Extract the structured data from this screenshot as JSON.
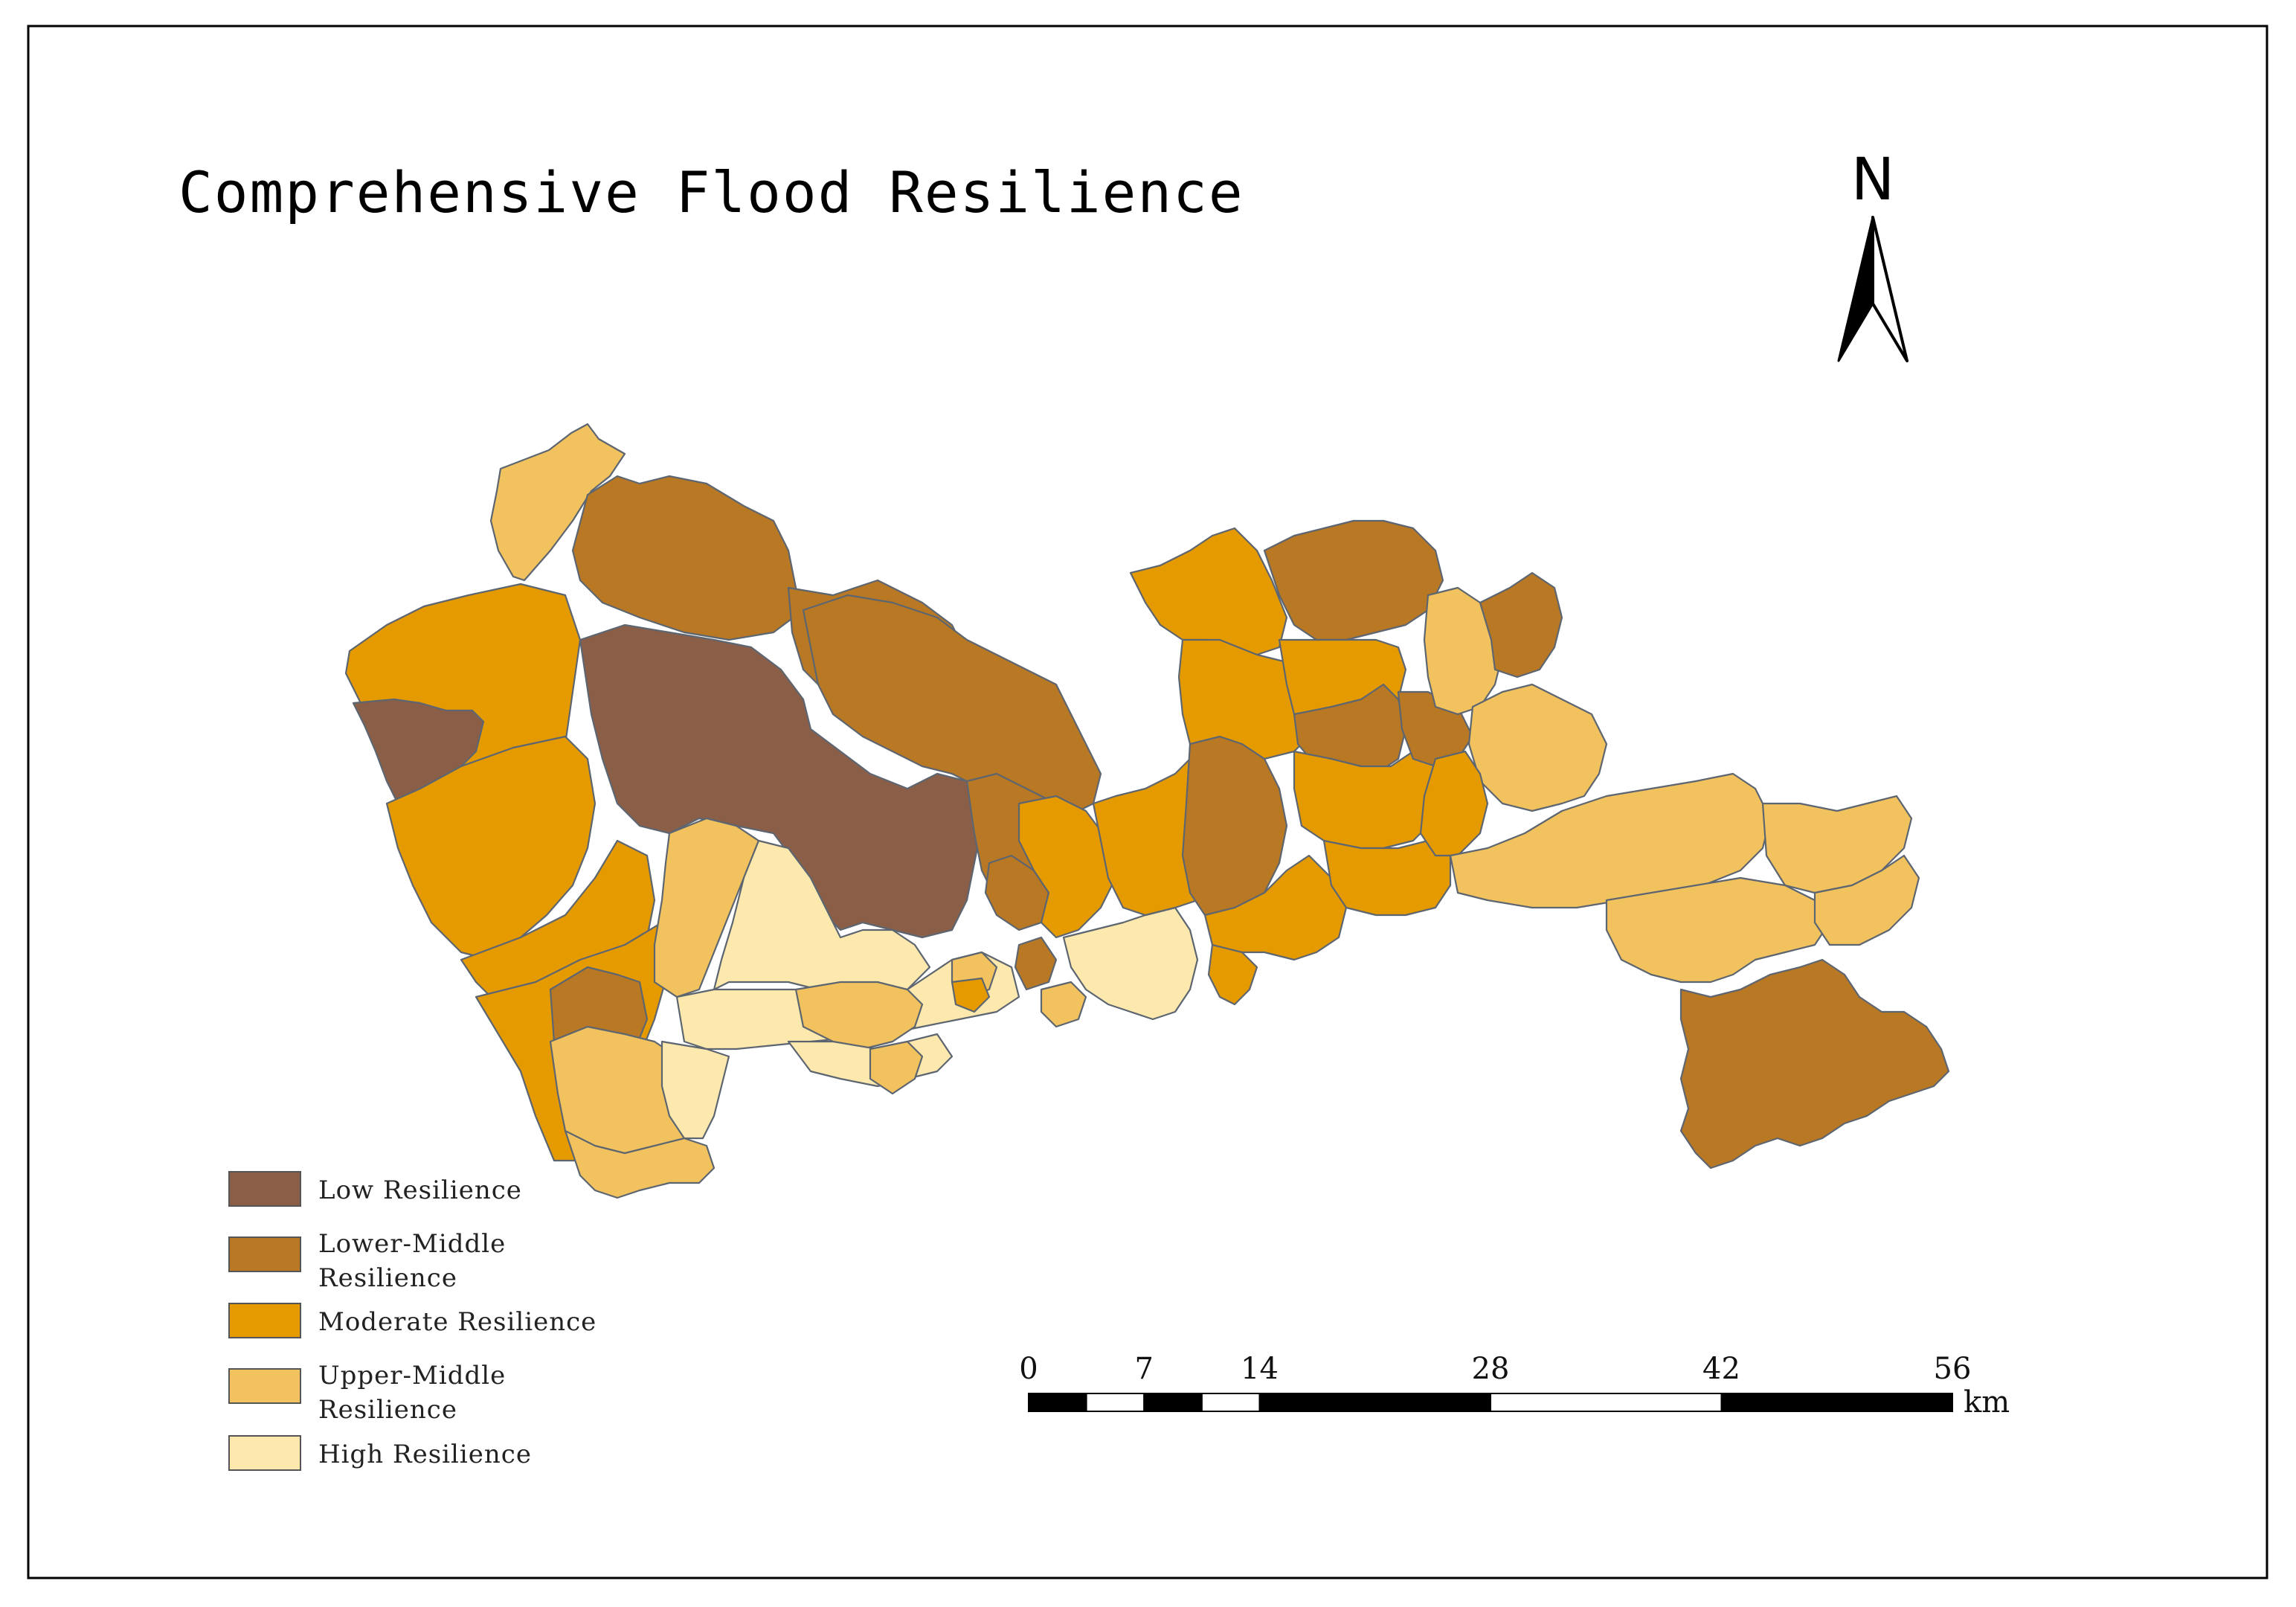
{
  "title": "Comprehensive Flood Resilience",
  "north_label": "N",
  "legend": [
    {
      "lines": [
        "Low Resilience"
      ],
      "color": "#8b5e47"
    },
    {
      "lines": [
        "Lower-Middle",
        "Resilience"
      ],
      "color": "#b97823"
    },
    {
      "lines": [
        "Moderate Resilience"
      ],
      "color": "#e59a00"
    },
    {
      "lines": [
        "Upper-Middle",
        "Resilience"
      ],
      "color": "#f2c25e"
    },
    {
      "lines": [
        "High Resilience"
      ],
      "color": "#fde9ad"
    }
  ],
  "scale_bar": {
    "ticks": [
      "0",
      "7",
      "14",
      "28",
      "42",
      "56"
    ],
    "unit": "km"
  },
  "classes": {
    "low": "#8b5e47",
    "lower_middle": "#b97823",
    "moderate": "#e59a00",
    "upper_middle": "#f2c25e",
    "high": "#fde9ad"
  },
  "district_outline_color": "#5d6670"
}
